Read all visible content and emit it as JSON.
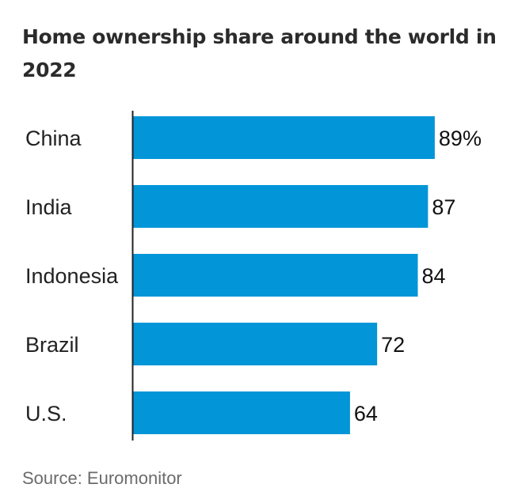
{
  "chart_data": {
    "type": "bar",
    "orientation": "horizontal",
    "title": "Home ownership share around the world in 2022",
    "categories": [
      "China",
      "India",
      "Indonesia",
      "Brazil",
      "U.S."
    ],
    "values": [
      89,
      87,
      84,
      72,
      64
    ],
    "value_labels": [
      "89%",
      "87",
      "84",
      "72",
      "64"
    ],
    "unit": "%",
    "xlim": [
      0,
      100
    ],
    "xlabel": "",
    "ylabel": "",
    "grid": false,
    "bar_color": "#0295D8",
    "source": "Source: Euromonitor"
  }
}
